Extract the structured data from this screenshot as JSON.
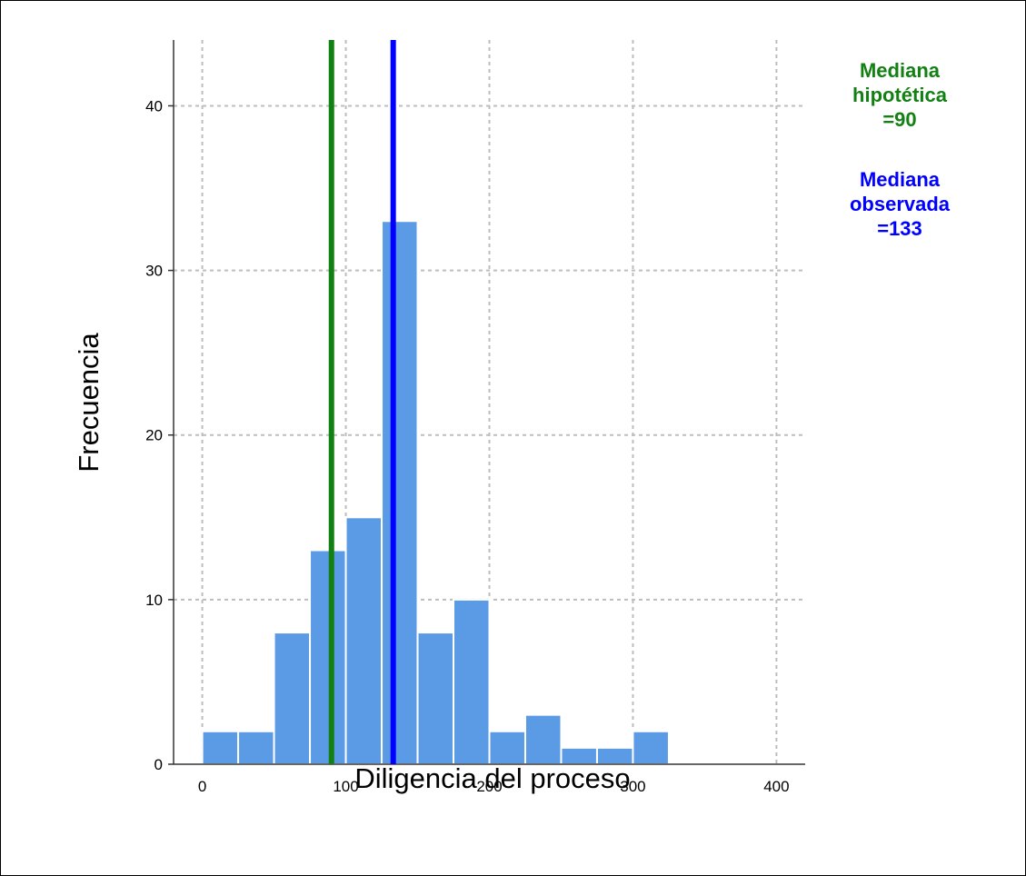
{
  "chart_data": {
    "type": "bar",
    "subtype": "histogram",
    "xlabel": "Diligencia del proceso",
    "ylabel": "Frecuencia",
    "xlim": [
      -20,
      420
    ],
    "ylim": [
      0,
      44
    ],
    "xticks": [
      0,
      100,
      200,
      300,
      400
    ],
    "yticks": [
      0,
      10,
      20,
      30,
      40
    ],
    "grid": true,
    "bin_width": 25,
    "bins": [
      {
        "start": 0,
        "end": 25,
        "count": 2
      },
      {
        "start": 25,
        "end": 50,
        "count": 2
      },
      {
        "start": 50,
        "end": 75,
        "count": 8
      },
      {
        "start": 75,
        "end": 100,
        "count": 13
      },
      {
        "start": 100,
        "end": 125,
        "count": 15
      },
      {
        "start": 125,
        "end": 150,
        "count": 33
      },
      {
        "start": 150,
        "end": 175,
        "count": 8
      },
      {
        "start": 175,
        "end": 200,
        "count": 10
      },
      {
        "start": 200,
        "end": 225,
        "count": 2
      },
      {
        "start": 225,
        "end": 250,
        "count": 3
      },
      {
        "start": 250,
        "end": 275,
        "count": 1
      },
      {
        "start": 275,
        "end": 300,
        "count": 1
      },
      {
        "start": 300,
        "end": 325,
        "count": 2
      }
    ],
    "bar_color": "#5b9be6",
    "reference_lines": [
      {
        "value": 90,
        "color": "#138013",
        "label_lines": [
          "Mediana",
          "hipotética",
          "=90"
        ]
      },
      {
        "value": 133,
        "color": "#0000ff",
        "label_lines": [
          "Mediana",
          "observada",
          "=133"
        ]
      }
    ],
    "legend_position": "top-right"
  }
}
